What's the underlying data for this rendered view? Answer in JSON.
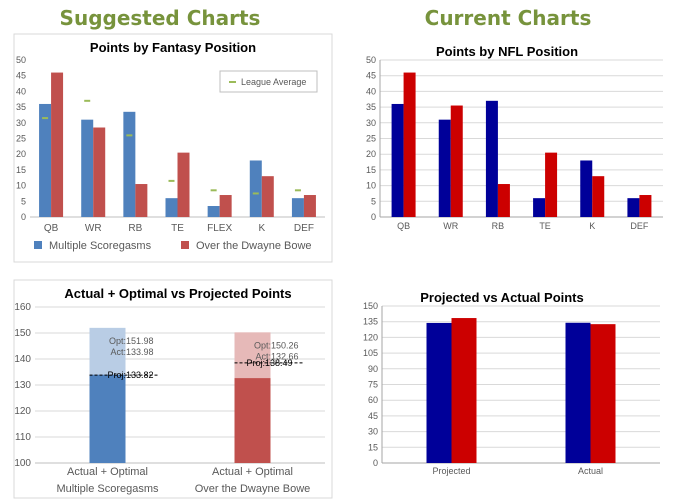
{
  "headings": {
    "left": "Suggested Charts",
    "right": "Current Charts"
  },
  "colors": {
    "blue": "#4f81bd",
    "red": "#c0504d",
    "light_blue": "#b9cde5",
    "light_red": "#e6b9b8",
    "dark_blue": "#000099",
    "dark_red": "#cc0000",
    "heading_green": "#77933c",
    "league_marker": "#9bbb59",
    "grid": "#d9d9d9",
    "border": "#d9d9d9",
    "text": "#595959"
  },
  "chart_data": [
    {
      "id": "fantasy",
      "type": "bar",
      "title": "Points by Fantasy Position",
      "categories": [
        "QB",
        "WR",
        "RB",
        "TE",
        "FLEX",
        "K",
        "DEF"
      ],
      "series": [
        {
          "name": "Multiple Scoregasms",
          "values": [
            36,
            31,
            33.5,
            6,
            3.5,
            18,
            6
          ]
        },
        {
          "name": "Over the Dwayne Bowe",
          "values": [
            46,
            28.5,
            10.5,
            20.5,
            7,
            13,
            7
          ]
        }
      ],
      "markers": {
        "name": "League Average",
        "values": [
          31.5,
          37,
          26,
          11.5,
          8.5,
          7.5,
          8.5
        ]
      },
      "ylim": [
        0,
        50
      ],
      "yticks": [
        0,
        5,
        10,
        15,
        20,
        25,
        30,
        35,
        40,
        45,
        50
      ],
      "grid": false,
      "legend": "bottom"
    },
    {
      "id": "nfl",
      "type": "bar",
      "title": "Points by NFL Position",
      "categories": [
        "QB",
        "WR",
        "RB",
        "TE",
        "K",
        "DEF"
      ],
      "series": [
        {
          "values": [
            36,
            31,
            37,
            6,
            18,
            6
          ]
        },
        {
          "values": [
            46,
            35.5,
            10.5,
            20.5,
            13,
            7
          ]
        }
      ],
      "ylim": [
        0,
        50
      ],
      "yticks": [
        0,
        5,
        10,
        15,
        20,
        25,
        30,
        35,
        40,
        45,
        50
      ],
      "grid": true
    },
    {
      "id": "optimal",
      "type": "bar",
      "title": "Actual + Optimal vs Projected Points",
      "categories": [
        [
          "Actual + Optimal",
          "Multiple Scoregasms"
        ],
        [
          "Actual + Optimal",
          "Over the Dwayne Bowe"
        ]
      ],
      "series": [
        {
          "opt": 151.98,
          "act": 133.98,
          "proj": 133.82,
          "labels": {
            "opt": "Opt:151.98",
            "act": "Act:133.98",
            "proj": "Proj:133.82"
          }
        },
        {
          "opt": 150.26,
          "act": 132.66,
          "proj": 138.49,
          "labels": {
            "opt": "Opt:150.26",
            "act": "Act:132.66",
            "proj": "Proj:138.49"
          }
        }
      ],
      "ylim": [
        100,
        160
      ],
      "yticks": [
        100,
        110,
        120,
        130,
        140,
        150,
        160
      ],
      "grid": true
    },
    {
      "id": "projected",
      "type": "bar",
      "title": "Projected vs Actual Points",
      "categories": [
        "Projected",
        "Actual"
      ],
      "series": [
        {
          "values": [
            133.82,
            133.98
          ]
        },
        {
          "values": [
            138.49,
            132.66
          ]
        }
      ],
      "ylim": [
        0,
        150
      ],
      "yticks": [
        0,
        15,
        30,
        45,
        60,
        75,
        90,
        105,
        120,
        135,
        150
      ],
      "grid": true
    }
  ]
}
